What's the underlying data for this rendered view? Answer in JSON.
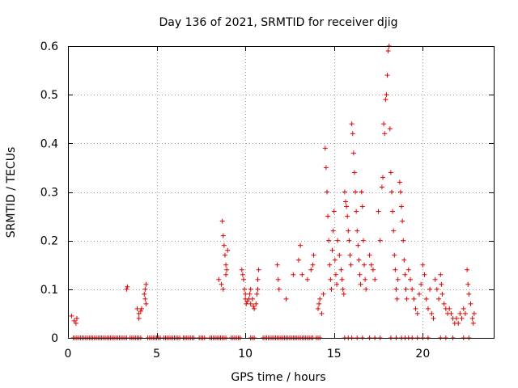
{
  "chart_data": {
    "type": "scatter",
    "title": "Day 136 of 2021, SRMTID for receiver djig",
    "xlabel": "GPS time / hours",
    "ylabel": "SRMTID / TECUs",
    "xlim": [
      0,
      24
    ],
    "ylim": [
      0,
      0.6
    ],
    "xticks": [
      0,
      5,
      10,
      15,
      20
    ],
    "yticks": [
      0,
      0.1,
      0.2,
      0.3,
      0.4,
      0.5,
      0.6
    ],
    "xtick_labels": [
      "0",
      "5",
      "10",
      "15",
      "20"
    ],
    "ytick_labels": [
      "0",
      "0.1",
      "0.2",
      "0.3",
      "0.4",
      "0.5",
      "0.6"
    ],
    "grid": true,
    "marker": "+",
    "color": "#e00000",
    "series": [
      {
        "name": "SRMTID",
        "points": [
          [
            0.2,
            0.045
          ],
          [
            0.35,
            0.035
          ],
          [
            0.45,
            0.03
          ],
          [
            0.5,
            0.04
          ],
          [
            3.3,
            0.1
          ],
          [
            3.35,
            0.105
          ],
          [
            3.9,
            0.06
          ],
          [
            4.0,
            0.05
          ],
          [
            4.0,
            0.04
          ],
          [
            4.1,
            0.055
          ],
          [
            4.15,
            0.06
          ],
          [
            4.3,
            0.09
          ],
          [
            4.35,
            0.1
          ],
          [
            4.4,
            0.11
          ],
          [
            4.35,
            0.08
          ],
          [
            4.4,
            0.07
          ],
          [
            8.5,
            0.12
          ],
          [
            8.65,
            0.11
          ],
          [
            8.7,
            0.24
          ],
          [
            8.75,
            0.21
          ],
          [
            8.8,
            0.19
          ],
          [
            8.85,
            0.17
          ],
          [
            8.9,
            0.15
          ],
          [
            8.9,
            0.13
          ],
          [
            8.75,
            0.1
          ],
          [
            8.95,
            0.14
          ],
          [
            9.0,
            0.18
          ],
          [
            9.8,
            0.14
          ],
          [
            9.85,
            0.13
          ],
          [
            9.9,
            0.12
          ],
          [
            9.95,
            0.1
          ],
          [
            10.0,
            0.09
          ],
          [
            10.0,
            0.08
          ],
          [
            10.05,
            0.07
          ],
          [
            10.1,
            0.075
          ],
          [
            10.2,
            0.08
          ],
          [
            10.25,
            0.09
          ],
          [
            10.3,
            0.1
          ],
          [
            10.3,
            0.07
          ],
          [
            10.4,
            0.08
          ],
          [
            10.45,
            0.065
          ],
          [
            10.5,
            0.06
          ],
          [
            10.6,
            0.07
          ],
          [
            10.65,
            0.09
          ],
          [
            10.7,
            0.12
          ],
          [
            10.75,
            0.14
          ],
          [
            10.7,
            0.1
          ],
          [
            11.8,
            0.15
          ],
          [
            11.85,
            0.12
          ],
          [
            11.9,
            0.1
          ],
          [
            12.3,
            0.08
          ],
          [
            12.7,
            0.13
          ],
          [
            13.0,
            0.16
          ],
          [
            13.1,
            0.19
          ],
          [
            13.2,
            0.13
          ],
          [
            13.5,
            0.12
          ],
          [
            13.7,
            0.14
          ],
          [
            13.8,
            0.15
          ],
          [
            13.85,
            0.17
          ],
          [
            14.1,
            0.06
          ],
          [
            14.15,
            0.07
          ],
          [
            14.2,
            0.08
          ],
          [
            14.3,
            0.05
          ],
          [
            14.4,
            0.09
          ],
          [
            14.5,
            0.39
          ],
          [
            14.55,
            0.35
          ],
          [
            14.6,
            0.3
          ],
          [
            14.65,
            0.25
          ],
          [
            14.7,
            0.2
          ],
          [
            14.75,
            0.15
          ],
          [
            14.8,
            0.12
          ],
          [
            14.85,
            0.1
          ],
          [
            14.9,
            0.18
          ],
          [
            14.95,
            0.22
          ],
          [
            15.0,
            0.26
          ],
          [
            15.05,
            0.16
          ],
          [
            15.1,
            0.13
          ],
          [
            15.15,
            0.11
          ],
          [
            15.2,
            0.2
          ],
          [
            15.3,
            0.17
          ],
          [
            15.4,
            0.14
          ],
          [
            15.45,
            0.12
          ],
          [
            15.5,
            0.1
          ],
          [
            15.55,
            0.09
          ],
          [
            15.6,
            0.3
          ],
          [
            15.65,
            0.28
          ],
          [
            15.7,
            0.27
          ],
          [
            15.75,
            0.25
          ],
          [
            15.8,
            0.22
          ],
          [
            15.85,
            0.2
          ],
          [
            15.9,
            0.17
          ],
          [
            15.95,
            0.15
          ],
          [
            16.0,
            0.44
          ],
          [
            16.05,
            0.42
          ],
          [
            16.1,
            0.38
          ],
          [
            16.15,
            0.34
          ],
          [
            16.2,
            0.3
          ],
          [
            16.25,
            0.26
          ],
          [
            16.3,
            0.22
          ],
          [
            16.35,
            0.19
          ],
          [
            16.4,
            0.16
          ],
          [
            16.45,
            0.13
          ],
          [
            16.5,
            0.11
          ],
          [
            16.55,
            0.3
          ],
          [
            16.6,
            0.27
          ],
          [
            16.65,
            0.2
          ],
          [
            16.7,
            0.15
          ],
          [
            16.75,
            0.12
          ],
          [
            16.8,
            0.1
          ],
          [
            17.0,
            0.17
          ],
          [
            17.1,
            0.15
          ],
          [
            17.2,
            0.14
          ],
          [
            17.3,
            0.12
          ],
          [
            17.5,
            0.26
          ],
          [
            17.6,
            0.2
          ],
          [
            17.7,
            0.31
          ],
          [
            17.75,
            0.33
          ],
          [
            17.8,
            0.44
          ],
          [
            17.85,
            0.42
          ],
          [
            17.9,
            0.49
          ],
          [
            17.95,
            0.5
          ],
          [
            18.0,
            0.54
          ],
          [
            18.05,
            0.59
          ],
          [
            18.1,
            0.6
          ],
          [
            18.15,
            0.43
          ],
          [
            18.2,
            0.34
          ],
          [
            18.25,
            0.3
          ],
          [
            18.3,
            0.26
          ],
          [
            18.35,
            0.22
          ],
          [
            18.4,
            0.17
          ],
          [
            18.45,
            0.14
          ],
          [
            18.5,
            0.1
          ],
          [
            18.55,
            0.08
          ],
          [
            18.6,
            0.12
          ],
          [
            18.7,
            0.32
          ],
          [
            18.75,
            0.3
          ],
          [
            18.8,
            0.27
          ],
          [
            18.85,
            0.24
          ],
          [
            18.9,
            0.2
          ],
          [
            18.95,
            0.16
          ],
          [
            19.0,
            0.13
          ],
          [
            19.05,
            0.1
          ],
          [
            19.1,
            0.08
          ],
          [
            19.2,
            0.14
          ],
          [
            19.3,
            0.12
          ],
          [
            19.4,
            0.1
          ],
          [
            19.5,
            0.08
          ],
          [
            19.6,
            0.06
          ],
          [
            19.7,
            0.05
          ],
          [
            19.8,
            0.09
          ],
          [
            19.9,
            0.11
          ],
          [
            20.0,
            0.15
          ],
          [
            20.1,
            0.13
          ],
          [
            20.2,
            0.08
          ],
          [
            20.3,
            0.06
          ],
          [
            20.4,
            0.1
          ],
          [
            20.5,
            0.05
          ],
          [
            20.6,
            0.04
          ],
          [
            20.7,
            0.12
          ],
          [
            20.8,
            0.1
          ],
          [
            20.9,
            0.08
          ],
          [
            21.0,
            0.13
          ],
          [
            21.05,
            0.11
          ],
          [
            21.1,
            0.09
          ],
          [
            21.2,
            0.07
          ],
          [
            21.3,
            0.06
          ],
          [
            21.4,
            0.05
          ],
          [
            21.5,
            0.06
          ],
          [
            21.6,
            0.05
          ],
          [
            21.7,
            0.04
          ],
          [
            21.8,
            0.03
          ],
          [
            21.9,
            0.04
          ],
          [
            22.0,
            0.03
          ],
          [
            22.1,
            0.05
          ],
          [
            22.2,
            0.04
          ],
          [
            22.3,
            0.06
          ],
          [
            22.4,
            0.05
          ],
          [
            22.5,
            0.14
          ],
          [
            22.55,
            0.11
          ],
          [
            22.6,
            0.09
          ],
          [
            22.7,
            0.07
          ],
          [
            22.8,
            0.04
          ],
          [
            22.85,
            0.03
          ],
          [
            22.9,
            0.05
          ]
        ],
        "zero_points": [
          0.3,
          0.4,
          0.5,
          0.6,
          0.7,
          0.8,
          0.9,
          1.0,
          1.1,
          1.2,
          1.3,
          1.4,
          1.5,
          1.6,
          1.7,
          1.8,
          1.9,
          2.0,
          2.1,
          2.2,
          2.3,
          2.4,
          2.5,
          2.6,
          2.7,
          2.8,
          2.9,
          3.0,
          3.1,
          3.2,
          3.3,
          3.5,
          3.6,
          3.7,
          3.8,
          3.9,
          4.0,
          4.1,
          4.5,
          4.6,
          4.7,
          4.8,
          4.9,
          5.0,
          5.1,
          5.2,
          5.4,
          5.5,
          5.6,
          5.7,
          5.8,
          5.9,
          6.0,
          6.1,
          6.2,
          6.3,
          6.5,
          6.6,
          6.7,
          6.8,
          6.9,
          7.0,
          7.1,
          7.4,
          7.5,
          7.6,
          7.7,
          8.0,
          8.1,
          8.2,
          8.3,
          8.4,
          8.5,
          8.6,
          8.7,
          8.8,
          8.9,
          9.2,
          9.3,
          9.4,
          9.5,
          9.6,
          9.7,
          10.3,
          10.4,
          10.5,
          11.0,
          11.1,
          11.2,
          11.3,
          11.4,
          11.5,
          11.6,
          11.7,
          11.8,
          11.9,
          12.0,
          12.1,
          12.2,
          12.3,
          12.4,
          12.5,
          12.6,
          12.7,
          12.8,
          12.9,
          13.0,
          13.1,
          13.2,
          13.3,
          13.4,
          13.5,
          13.6,
          13.7,
          13.8,
          14.0,
          14.1,
          14.2,
          15.6,
          15.8,
          16.0,
          16.3,
          16.6,
          17.0,
          17.3,
          17.6,
          18.2,
          18.5,
          18.8,
          19.0,
          19.2,
          19.4,
          19.7,
          20.0,
          20.3,
          21.0,
          21.3,
          21.7,
          22.3,
          22.6
        ]
      }
    ]
  }
}
